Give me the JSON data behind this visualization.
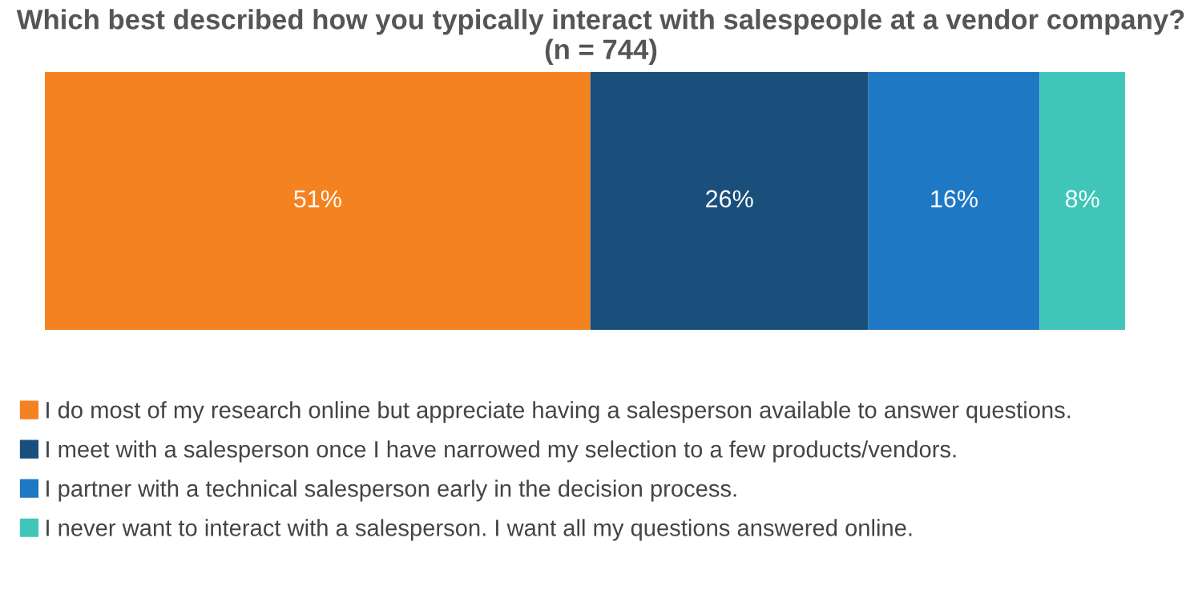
{
  "chart_data": {
    "type": "bar",
    "orientation": "horizontal",
    "stacked": true,
    "title": "Which best described how you typically interact with salespeople at a vendor company? (n = 744)",
    "categories": [
      null
    ],
    "series": [
      {
        "name": "I do most of my research online but appreciate having a salesperson available to answer questions.",
        "color": "#f58220",
        "values": [
          51
        ],
        "value_labels": [
          "51%"
        ]
      },
      {
        "name": "I meet with a salesperson once I have narrowed my selection to a few products/vendors.",
        "color": "#1b4f7b",
        "values": [
          26
        ],
        "value_labels": [
          "26%"
        ]
      },
      {
        "name": "I partner with a technical salesperson early in the decision process.",
        "color": "#1f78c4",
        "values": [
          16
        ],
        "value_labels": [
          "16%"
        ]
      },
      {
        "name": "I never want to interact with a salesperson. I want all my questions answered online.",
        "color": "#40c6b9",
        "values": [
          8
        ],
        "value_labels": [
          "8%"
        ]
      }
    ],
    "xlim": [
      0,
      101
    ],
    "tick_labels": false,
    "legend": "bottom"
  }
}
